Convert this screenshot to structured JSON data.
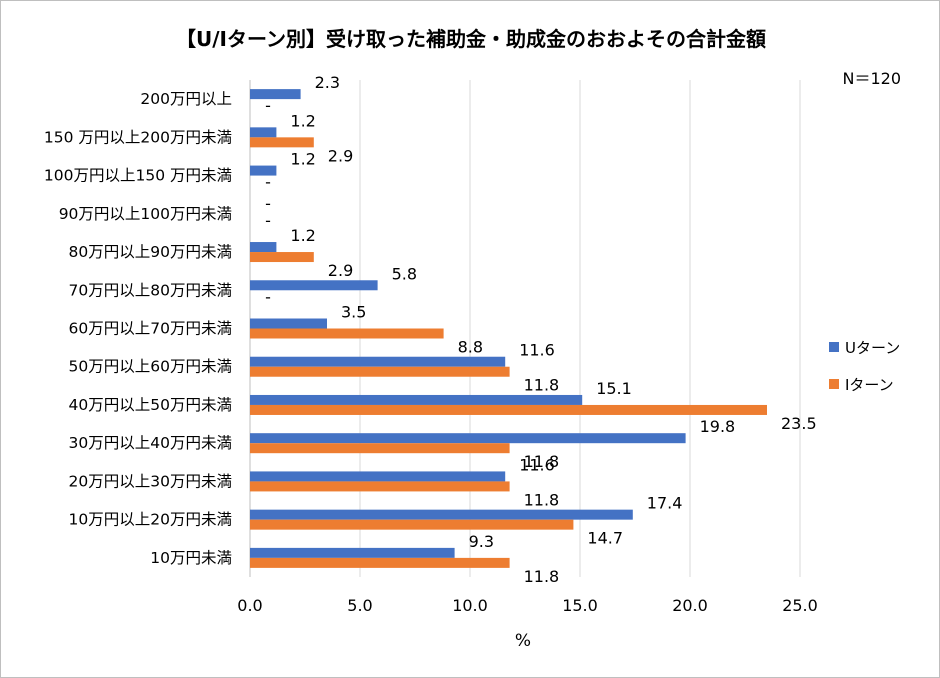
{
  "chart_data": {
    "type": "bar",
    "orientation": "horizontal",
    "title": "【U/Iターン別】受け取った補助金・助成金のおおよその合計金額",
    "note": "N＝120",
    "xlabel": "%",
    "ylabel": "",
    "xlim": [
      0,
      25
    ],
    "xticks": [
      "0.0",
      "5.0",
      "10.0",
      "15.0",
      "20.0",
      "25.0"
    ],
    "grid": true,
    "legend_position": "right",
    "categories": [
      "200万円以上",
      "150 万円以上200万円未満",
      "100万円以上150 万円未満",
      "90万円以上100万円未満",
      "80万円以上90万円未満",
      "70万円以上80万円未満",
      "60万円以上70万円未満",
      "50万円以上60万円未満",
      "40万円以上50万円未満",
      "30万円以上40万円未満",
      "20万円以上30万円未満",
      "10万円以上20万円未満",
      "10万円未満"
    ],
    "series": [
      {
        "name": "Uターン",
        "color": "#4472C4",
        "values": [
          2.3,
          1.2,
          1.2,
          null,
          1.2,
          5.8,
          3.5,
          11.6,
          15.1,
          19.8,
          11.6,
          17.4,
          9.3
        ],
        "labels": [
          "2.3",
          "1.2",
          "1.2",
          "-",
          "1.2",
          "5.8",
          "3.5",
          "11.6",
          "15.1",
          "19.8",
          "11.6",
          "17.4",
          "9.3"
        ]
      },
      {
        "name": "Iターン",
        "color": "#ED7D31",
        "values": [
          null,
          2.9,
          null,
          null,
          2.9,
          null,
          8.8,
          11.8,
          23.5,
          11.8,
          11.8,
          14.7,
          11.8
        ],
        "labels": [
          "-",
          "2.9",
          "-",
          "-",
          "2.9",
          "-",
          "8.8",
          "11.8",
          "23.5",
          "11.8",
          "11.8",
          "14.7",
          "11.8"
        ]
      }
    ]
  }
}
